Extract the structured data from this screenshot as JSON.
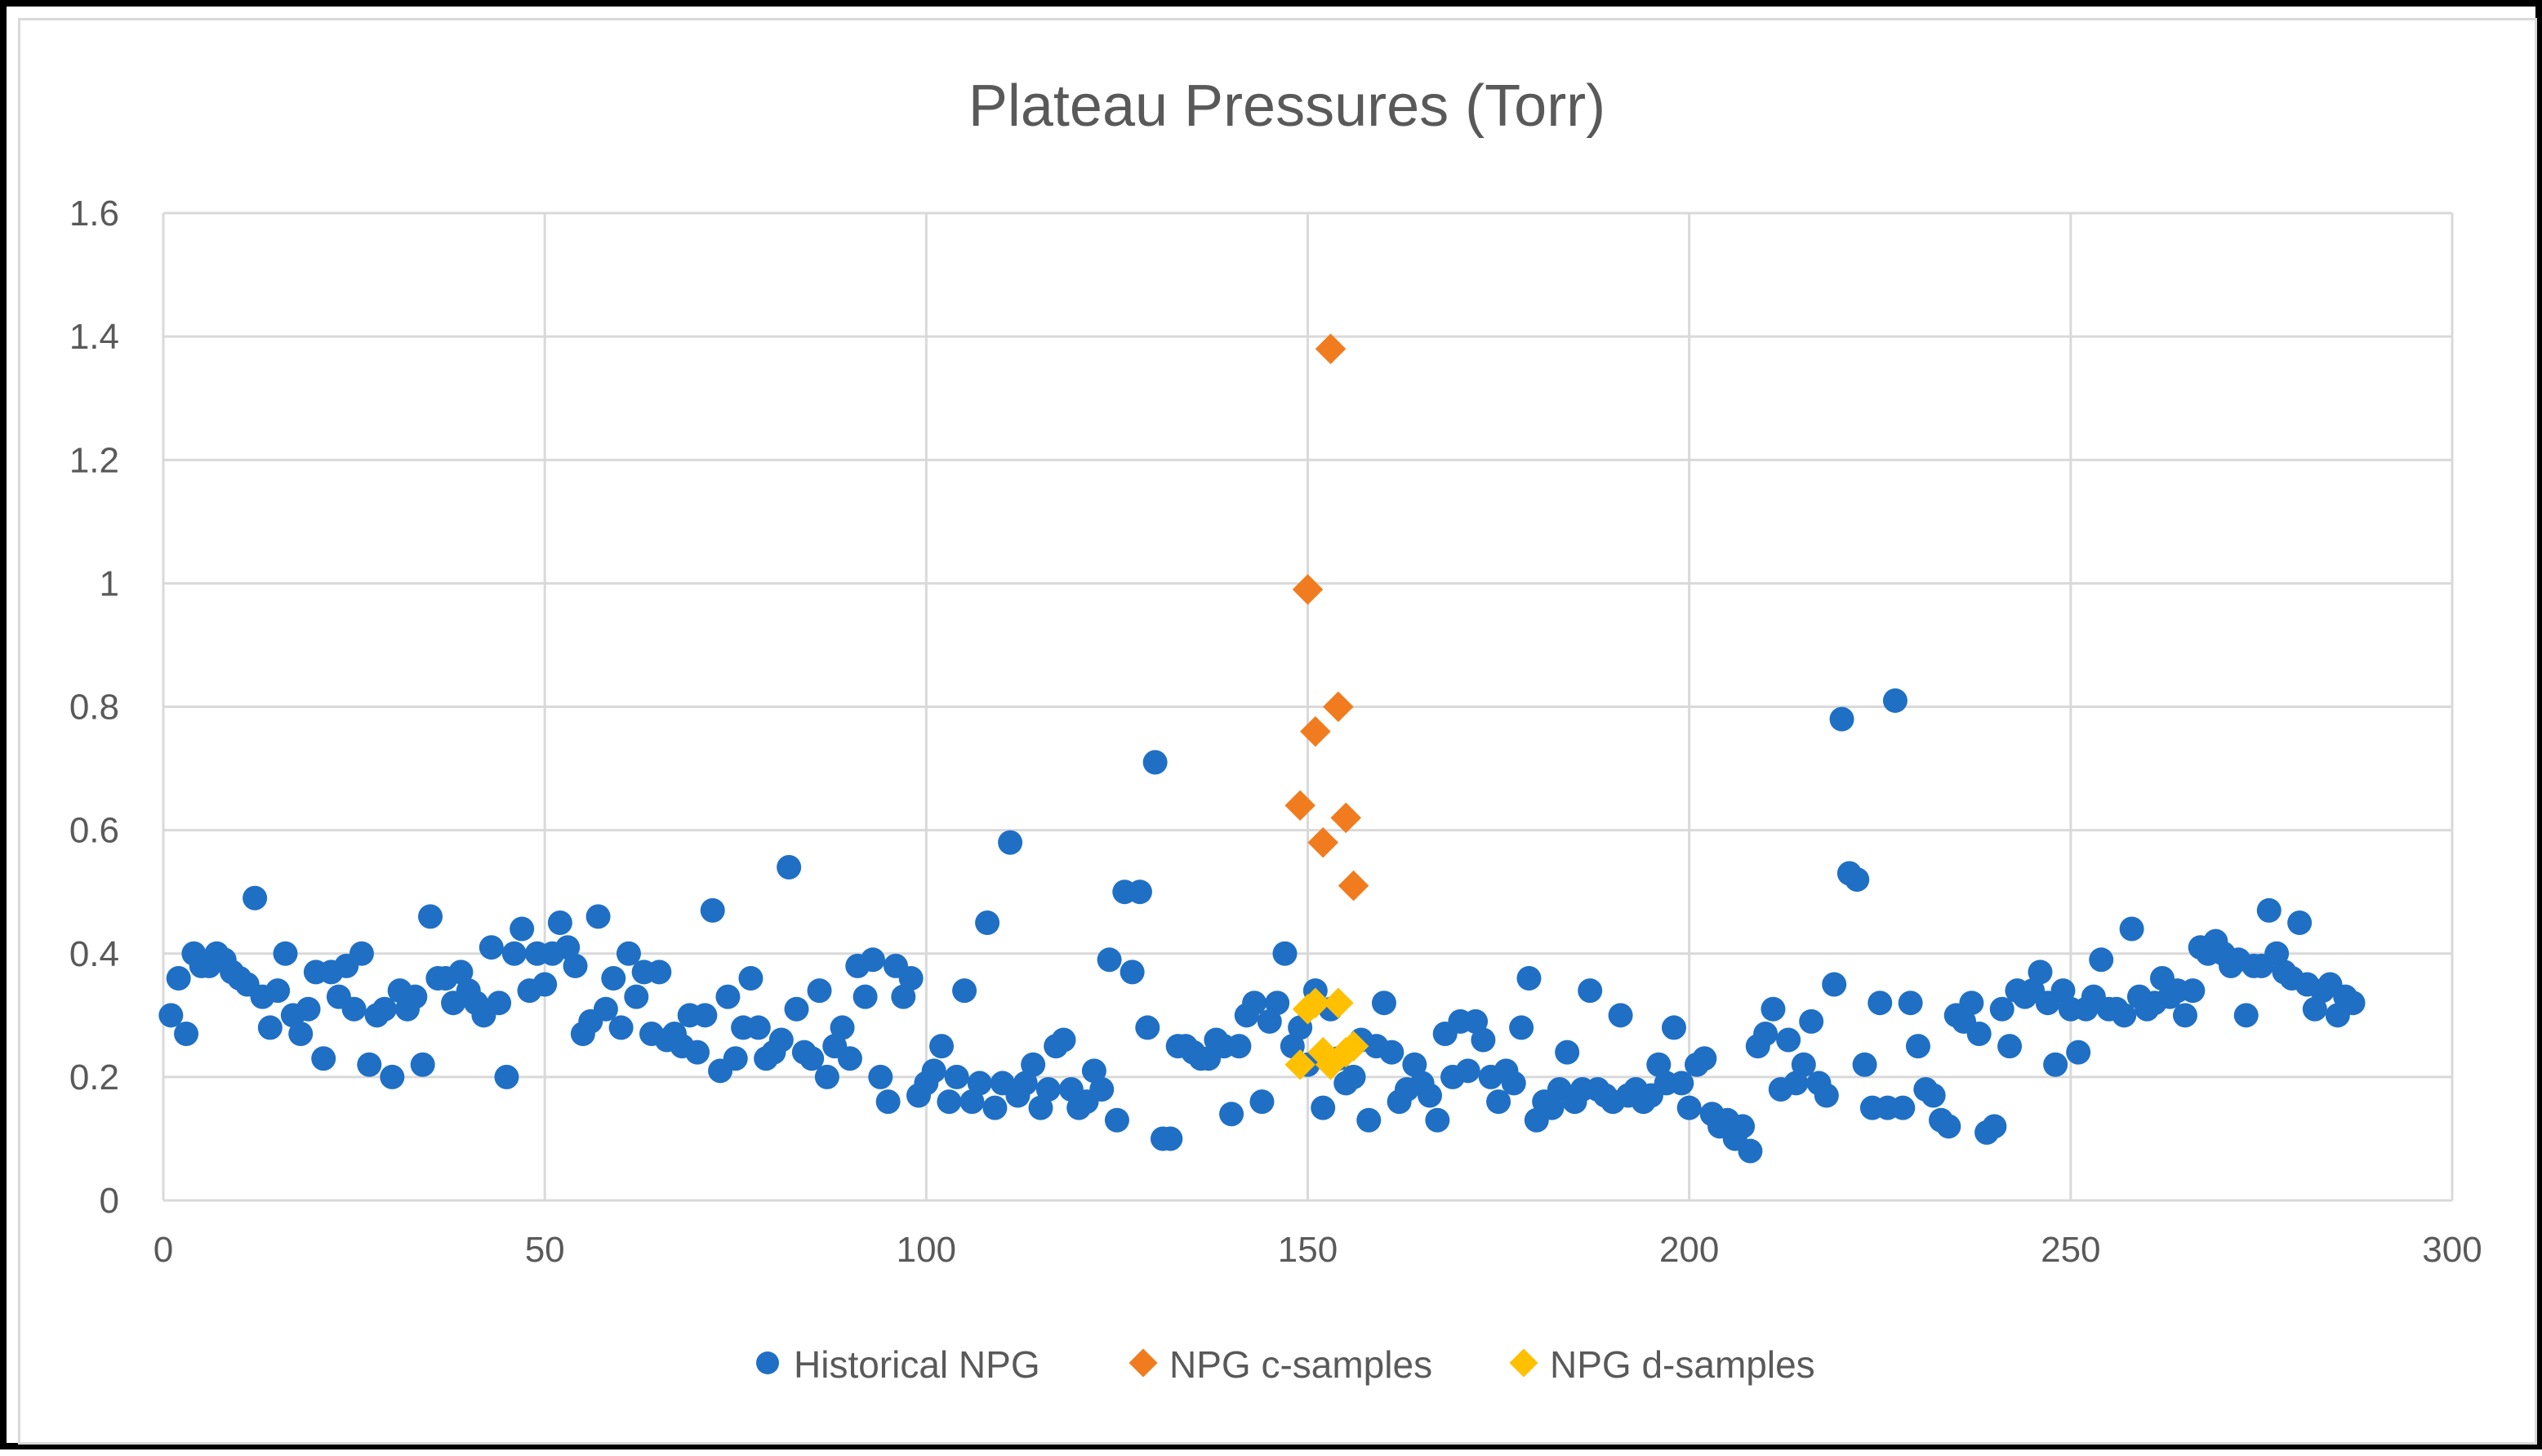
{
  "chart_data": {
    "type": "scatter",
    "title": "Plateau Pressures (Torr)",
    "xlabel": "",
    "ylabel": "",
    "xlim": [
      0,
      300
    ],
    "ylim": [
      0,
      1.6
    ],
    "xticks": [
      0,
      50,
      100,
      150,
      200,
      250,
      300
    ],
    "yticks": [
      0,
      0.2,
      0.4,
      0.6,
      0.8,
      1,
      1.2,
      1.4,
      1.6
    ],
    "xtick_labels": [
      "0",
      "50",
      "100",
      "150",
      "200",
      "250",
      "300"
    ],
    "ytick_labels": [
      "0",
      "0.2",
      "0.4",
      "0.6",
      "0.8",
      "1",
      "1.2",
      "1.4",
      "1.6"
    ],
    "grid": true,
    "legend_position": "bottom",
    "series": [
      {
        "name": "Historical NPG",
        "marker": "circle",
        "color": "#1f6fc5",
        "points": [
          [
            1,
            0.3
          ],
          [
            2,
            0.36
          ],
          [
            3,
            0.27
          ],
          [
            4,
            0.4
          ],
          [
            5,
            0.38
          ],
          [
            6,
            0.38
          ],
          [
            7,
            0.4
          ],
          [
            8,
            0.39
          ],
          [
            9,
            0.37
          ],
          [
            10,
            0.36
          ],
          [
            11,
            0.35
          ],
          [
            12,
            0.49
          ],
          [
            13,
            0.33
          ],
          [
            14,
            0.28
          ],
          [
            15,
            0.34
          ],
          [
            16,
            0.4
          ],
          [
            17,
            0.3
          ],
          [
            18,
            0.27
          ],
          [
            19,
            0.31
          ],
          [
            20,
            0.37
          ],
          [
            21,
            0.23
          ],
          [
            22,
            0.37
          ],
          [
            23,
            0.33
          ],
          [
            24,
            0.38
          ],
          [
            25,
            0.31
          ],
          [
            26,
            0.4
          ],
          [
            27,
            0.22
          ],
          [
            28,
            0.3
          ],
          [
            29,
            0.31
          ],
          [
            30,
            0.2
          ],
          [
            31,
            0.34
          ],
          [
            32,
            0.31
          ],
          [
            33,
            0.33
          ],
          [
            34,
            0.22
          ],
          [
            35,
            0.46
          ],
          [
            36,
            0.36
          ],
          [
            37,
            0.36
          ],
          [
            38,
            0.32
          ],
          [
            39,
            0.37
          ],
          [
            40,
            0.34
          ],
          [
            41,
            0.32
          ],
          [
            42,
            0.3
          ],
          [
            43,
            0.41
          ],
          [
            44,
            0.32
          ],
          [
            45,
            0.2
          ],
          [
            46,
            0.4
          ],
          [
            47,
            0.44
          ],
          [
            48,
            0.34
          ],
          [
            49,
            0.4
          ],
          [
            50,
            0.35
          ],
          [
            51,
            0.4
          ],
          [
            52,
            0.45
          ],
          [
            53,
            0.41
          ],
          [
            54,
            0.38
          ],
          [
            55,
            0.27
          ],
          [
            56,
            0.29
          ],
          [
            57,
            0.46
          ],
          [
            58,
            0.31
          ],
          [
            59,
            0.36
          ],
          [
            60,
            0.28
          ],
          [
            61,
            0.4
          ],
          [
            62,
            0.33
          ],
          [
            63,
            0.37
          ],
          [
            64,
            0.27
          ],
          [
            65,
            0.37
          ],
          [
            66,
            0.26
          ],
          [
            67,
            0.27
          ],
          [
            68,
            0.25
          ],
          [
            69,
            0.3
          ],
          [
            70,
            0.24
          ],
          [
            71,
            0.3
          ],
          [
            72,
            0.47
          ],
          [
            73,
            0.21
          ],
          [
            74,
            0.33
          ],
          [
            75,
            0.23
          ],
          [
            76,
            0.28
          ],
          [
            77,
            0.36
          ],
          [
            78,
            0.28
          ],
          [
            79,
            0.23
          ],
          [
            80,
            0.24
          ],
          [
            81,
            0.26
          ],
          [
            82,
            0.54
          ],
          [
            83,
            0.31
          ],
          [
            84,
            0.24
          ],
          [
            85,
            0.23
          ],
          [
            86,
            0.34
          ],
          [
            87,
            0.2
          ],
          [
            88,
            0.25
          ],
          [
            89,
            0.28
          ],
          [
            90,
            0.23
          ],
          [
            91,
            0.38
          ],
          [
            92,
            0.33
          ],
          [
            93,
            0.39
          ],
          [
            94,
            0.2
          ],
          [
            95,
            0.16
          ],
          [
            96,
            0.38
          ],
          [
            97,
            0.33
          ],
          [
            98,
            0.36
          ],
          [
            99,
            0.17
          ],
          [
            100,
            0.19
          ],
          [
            101,
            0.21
          ],
          [
            102,
            0.25
          ],
          [
            103,
            0.16
          ],
          [
            104,
            0.2
          ],
          [
            105,
            0.34
          ],
          [
            106,
            0.16
          ],
          [
            107,
            0.19
          ],
          [
            108,
            0.45
          ],
          [
            109,
            0.15
          ],
          [
            110,
            0.19
          ],
          [
            111,
            0.58
          ],
          [
            112,
            0.17
          ],
          [
            113,
            0.19
          ],
          [
            114,
            0.22
          ],
          [
            115,
            0.15
          ],
          [
            116,
            0.18
          ],
          [
            117,
            0.25
          ],
          [
            118,
            0.26
          ],
          [
            119,
            0.18
          ],
          [
            120,
            0.15
          ],
          [
            121,
            0.16
          ],
          [
            122,
            0.21
          ],
          [
            123,
            0.18
          ],
          [
            124,
            0.39
          ],
          [
            125,
            0.13
          ],
          [
            126,
            0.5
          ],
          [
            127,
            0.37
          ],
          [
            128,
            0.5
          ],
          [
            129,
            0.28
          ],
          [
            130,
            0.71
          ],
          [
            131,
            0.1
          ],
          [
            132,
            0.1
          ],
          [
            133,
            0.25
          ],
          [
            134,
            0.25
          ],
          [
            135,
            0.24
          ],
          [
            136,
            0.23
          ],
          [
            137,
            0.23
          ],
          [
            138,
            0.26
          ],
          [
            139,
            0.25
          ],
          [
            140,
            0.14
          ],
          [
            141,
            0.25
          ],
          [
            142,
            0.3
          ],
          [
            143,
            0.32
          ],
          [
            144,
            0.16
          ],
          [
            145,
            0.29
          ],
          [
            146,
            0.32
          ],
          [
            147,
            0.4
          ],
          [
            148,
            0.25
          ],
          [
            149,
            0.28
          ],
          [
            150,
            0.22
          ],
          [
            151,
            0.34
          ],
          [
            152,
            0.15
          ],
          [
            153,
            0.31
          ],
          [
            154,
            0.23
          ],
          [
            155,
            0.19
          ],
          [
            156,
            0.2
          ],
          [
            157,
            0.26
          ],
          [
            158,
            0.13
          ],
          [
            159,
            0.25
          ],
          [
            160,
            0.32
          ],
          [
            161,
            0.24
          ],
          [
            162,
            0.16
          ],
          [
            163,
            0.18
          ],
          [
            164,
            0.22
          ],
          [
            165,
            0.19
          ],
          [
            166,
            0.17
          ],
          [
            167,
            0.13
          ],
          [
            168,
            0.27
          ],
          [
            169,
            0.2
          ],
          [
            170,
            0.29
          ],
          [
            171,
            0.21
          ],
          [
            172,
            0.29
          ],
          [
            173,
            0.26
          ],
          [
            174,
            0.2
          ],
          [
            175,
            0.16
          ],
          [
            176,
            0.21
          ],
          [
            177,
            0.19
          ],
          [
            178,
            0.28
          ],
          [
            179,
            0.36
          ],
          [
            180,
            0.13
          ],
          [
            181,
            0.16
          ],
          [
            182,
            0.15
          ],
          [
            183,
            0.18
          ],
          [
            184,
            0.24
          ],
          [
            185,
            0.16
          ],
          [
            186,
            0.18
          ],
          [
            187,
            0.34
          ],
          [
            188,
            0.18
          ],
          [
            189,
            0.17
          ],
          [
            190,
            0.16
          ],
          [
            191,
            0.3
          ],
          [
            192,
            0.17
          ],
          [
            193,
            0.18
          ],
          [
            194,
            0.16
          ],
          [
            195,
            0.17
          ],
          [
            196,
            0.22
          ],
          [
            197,
            0.19
          ],
          [
            198,
            0.28
          ],
          [
            199,
            0.19
          ],
          [
            200,
            0.15
          ],
          [
            201,
            0.22
          ],
          [
            202,
            0.23
          ],
          [
            203,
            0.14
          ],
          [
            204,
            0.12
          ],
          [
            205,
            0.13
          ],
          [
            206,
            0.1
          ],
          [
            207,
            0.12
          ],
          [
            208,
            0.08
          ],
          [
            209,
            0.25
          ],
          [
            210,
            0.27
          ],
          [
            211,
            0.31
          ],
          [
            212,
            0.18
          ],
          [
            213,
            0.26
          ],
          [
            214,
            0.19
          ],
          [
            215,
            0.22
          ],
          [
            216,
            0.29
          ],
          [
            217,
            0.19
          ],
          [
            218,
            0.17
          ],
          [
            219,
            0.35
          ],
          [
            220,
            0.78
          ],
          [
            221,
            0.53
          ],
          [
            222,
            0.52
          ],
          [
            223,
            0.22
          ],
          [
            224,
            0.15
          ],
          [
            225,
            0.32
          ],
          [
            226,
            0.15
          ],
          [
            227,
            0.81
          ],
          [
            228,
            0.15
          ],
          [
            229,
            0.32
          ],
          [
            230,
            0.25
          ],
          [
            231,
            0.18
          ],
          [
            232,
            0.17
          ],
          [
            233,
            0.13
          ],
          [
            234,
            0.12
          ],
          [
            235,
            0.3
          ],
          [
            236,
            0.29
          ],
          [
            237,
            0.32
          ],
          [
            238,
            0.27
          ],
          [
            239,
            0.11
          ],
          [
            240,
            0.12
          ],
          [
            241,
            0.31
          ],
          [
            242,
            0.25
          ],
          [
            243,
            0.34
          ],
          [
            244,
            0.33
          ],
          [
            245,
            0.34
          ],
          [
            246,
            0.37
          ],
          [
            247,
            0.32
          ],
          [
            248,
            0.22
          ],
          [
            249,
            0.34
          ],
          [
            250,
            0.31
          ],
          [
            251,
            0.24
          ],
          [
            252,
            0.31
          ],
          [
            253,
            0.33
          ],
          [
            254,
            0.39
          ],
          [
            255,
            0.31
          ],
          [
            256,
            0.31
          ],
          [
            257,
            0.3
          ],
          [
            258,
            0.44
          ],
          [
            259,
            0.33
          ],
          [
            260,
            0.31
          ],
          [
            261,
            0.32
          ],
          [
            262,
            0.36
          ],
          [
            263,
            0.33
          ],
          [
            264,
            0.34
          ],
          [
            265,
            0.3
          ],
          [
            266,
            0.34
          ],
          [
            267,
            0.41
          ],
          [
            268,
            0.4
          ],
          [
            269,
            0.42
          ],
          [
            270,
            0.4
          ],
          [
            271,
            0.38
          ],
          [
            272,
            0.39
          ],
          [
            273,
            0.3
          ],
          [
            274,
            0.38
          ],
          [
            275,
            0.38
          ],
          [
            276,
            0.47
          ],
          [
            277,
            0.4
          ],
          [
            278,
            0.37
          ],
          [
            279,
            0.36
          ],
          [
            280,
            0.45
          ],
          [
            281,
            0.35
          ],
          [
            282,
            0.31
          ],
          [
            283,
            0.34
          ],
          [
            284,
            0.35
          ],
          [
            285,
            0.3
          ],
          [
            286,
            0.33
          ],
          [
            287,
            0.32
          ]
        ]
      },
      {
        "name": "NPG c-samples",
        "marker": "diamond",
        "color": "#f07c1f",
        "points": [
          [
            149,
            0.64
          ],
          [
            150,
            0.99
          ],
          [
            151,
            0.76
          ],
          [
            152,
            0.58
          ],
          [
            153,
            1.38
          ],
          [
            154,
            0.8
          ],
          [
            155,
            0.62
          ],
          [
            156,
            0.51
          ]
        ]
      },
      {
        "name": "NPG d-samples",
        "marker": "diamond",
        "color": "#ffc000",
        "points": [
          [
            149,
            0.22
          ],
          [
            150,
            0.31
          ],
          [
            151,
            0.32
          ],
          [
            152,
            0.24
          ],
          [
            153,
            0.22
          ],
          [
            154,
            0.32
          ],
          [
            155,
            0.24
          ],
          [
            156,
            0.25
          ]
        ]
      }
    ]
  }
}
